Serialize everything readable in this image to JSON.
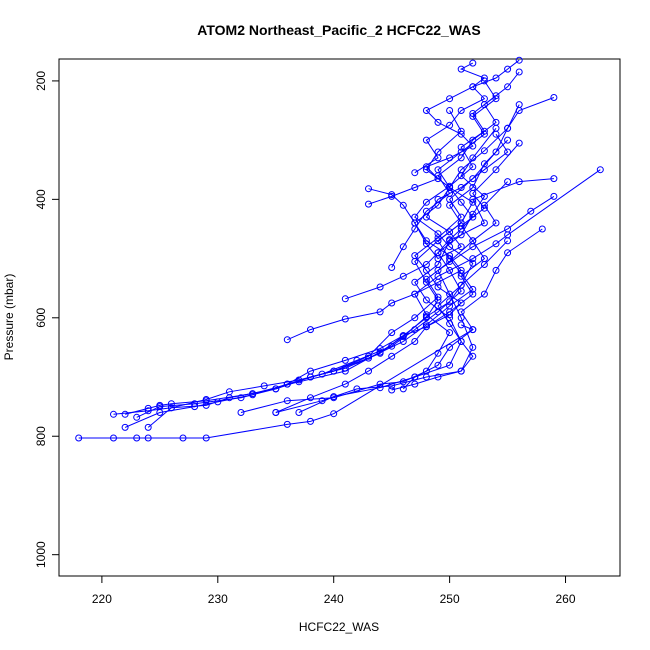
{
  "chart_data": {
    "type": "line",
    "title": "ATOM2 Northeast_Pacific_2 HCFC22_WAS",
    "xlabel": "HCFC22_WAS",
    "ylabel": "Pressure (mbar)",
    "xlim": [
      216.3,
      264.7
    ],
    "ylim": [
      1036,
      163
    ],
    "y_reversed": true,
    "xticks": [
      220,
      230,
      240,
      250,
      260
    ],
    "yticks": [
      200,
      400,
      600,
      800,
      1000
    ],
    "color": "#0000ff",
    "marker": "open-circle",
    "grid": false,
    "series": [
      {
        "x": [
          218,
          221,
          223,
          224,
          227,
          229,
          236,
          238,
          240,
          252,
          251
        ],
        "y": [
          803,
          803,
          803,
          803,
          803,
          803,
          780,
          775,
          762,
          620,
          612
        ]
      },
      {
        "x": [
          222,
          224,
          225,
          226,
          229,
          233,
          237,
          241,
          244,
          246,
          248,
          250,
          251,
          252,
          250,
          249,
          247,
          248,
          250,
          252,
          251,
          253,
          252,
          254
        ],
        "y": [
          763,
          753,
          748,
          745,
          740,
          728,
          708,
          690,
          658,
          632,
          598,
          573,
          545,
          508,
          480,
          458,
          430,
          405,
          378,
          345,
          312,
          285,
          255,
          225
        ]
      },
      {
        "x": [
          221,
          224,
          226,
          229,
          231,
          235,
          238,
          241,
          244,
          246,
          248,
          249,
          248,
          247,
          249,
          251,
          250,
          252,
          253,
          255
        ],
        "y": [
          763,
          757,
          752,
          748,
          735,
          720,
          700,
          685,
          660,
          630,
          600,
          570,
          540,
          505,
          470,
          440,
          410,
          380,
          340,
          300
        ]
      },
      {
        "x": [
          222,
          225,
          228,
          230,
          233,
          236,
          239,
          242,
          245,
          247,
          249,
          251,
          250,
          249,
          251,
          252,
          253,
          251,
          252,
          254
        ],
        "y": [
          785,
          760,
          750,
          742,
          730,
          712,
          695,
          672,
          648,
          620,
          590,
          555,
          520,
          490,
          460,
          425,
          395,
          360,
          330,
          280
        ]
      },
      {
        "x": [
          224,
          226,
          229,
          231,
          234,
          237,
          240,
          243,
          246,
          248,
          250,
          252,
          251,
          250,
          249,
          251,
          252,
          250,
          251,
          253,
          255,
          256
        ],
        "y": [
          785,
          752,
          738,
          725,
          715,
          705,
          690,
          668,
          640,
          612,
          580,
          552,
          525,
          500,
          470,
          440,
          405,
          380,
          350,
          318,
          280,
          240
        ]
      },
      {
        "x": [
          223,
          225,
          228,
          232,
          235,
          238,
          240,
          243,
          245,
          247,
          249,
          248,
          250,
          252,
          251,
          253,
          252,
          254,
          256
        ],
        "y": [
          768,
          750,
          745,
          735,
          720,
          700,
          690,
          665,
          625,
          600,
          565,
          535,
          505,
          470,
          445,
          415,
          390,
          350,
          305
        ]
      },
      {
        "x": [
          235,
          238,
          241,
          243,
          245,
          247,
          248,
          250,
          252,
          251,
          253,
          252,
          254,
          253,
          255
        ],
        "y": [
          760,
          735,
          712,
          690,
          665,
          640,
          615,
          590,
          560,
          530,
          500,
          470,
          440,
          410,
          370
        ]
      },
      {
        "x": [
          232,
          236,
          240,
          244,
          246,
          248,
          249,
          250,
          248,
          247,
          249,
          252,
          254,
          255,
          263
        ],
        "y": [
          760,
          740,
          735,
          712,
          708,
          690,
          660,
          625,
          595,
          560,
          530,
          500,
          475,
          460,
          350
        ]
      },
      {
        "x": [
          235,
          239,
          242,
          245,
          248,
          251,
          252,
          251,
          250,
          249,
          252,
          255,
          257,
          259
        ],
        "y": [
          760,
          740,
          720,
          715,
          700,
          690,
          650,
          600,
          560,
          520,
          480,
          450,
          420,
          395
        ]
      },
      {
        "x": [
          237,
          240,
          244,
          247,
          250,
          251,
          250,
          248,
          247,
          249,
          250,
          253,
          252,
          256,
          259
        ],
        "y": [
          760,
          733,
          718,
          700,
          680,
          640,
          600,
          570,
          540,
          510,
          470,
          440,
          400,
          370,
          365
        ]
      },
      {
        "x": [
          236,
          238,
          241,
          244,
          246,
          248,
          250,
          251,
          249,
          248,
          247,
          249,
          251,
          250,
          252,
          254,
          255,
          256,
          259
        ],
        "y": [
          712,
          690,
          672,
          652,
          630,
          615,
          595,
          575,
          548,
          520,
          495,
          465,
          430,
          400,
          365,
          320,
          280,
          250,
          228
        ]
      },
      {
        "x": [
          236,
          238,
          241,
          244,
          245,
          247,
          249,
          251,
          250,
          248,
          247,
          249,
          250,
          248,
          249,
          251,
          250
        ],
        "y": [
          637,
          620,
          602,
          590,
          575,
          560,
          540,
          520,
          495,
          470,
          440,
          410,
          380,
          350,
          320,
          285,
          250
        ]
      },
      {
        "x": [
          241,
          244,
          246,
          248,
          249,
          250,
          251,
          252,
          251,
          250,
          249,
          251,
          253,
          252,
          254,
          253
        ],
        "y": [
          568,
          548,
          530,
          510,
          490,
          468,
          450,
          430,
          405,
          380,
          350,
          320,
          290,
          260,
          230,
          200
        ]
      },
      {
        "x": [
          243,
          245,
          247,
          249,
          248,
          250,
          252,
          251,
          249,
          248,
          250,
          252,
          253,
          251,
          252
        ],
        "y": [
          408,
          395,
          380,
          365,
          345,
          330,
          310,
          290,
          270,
          250,
          230,
          210,
          195,
          180,
          170
        ]
      },
      {
        "x": [
          243,
          245,
          246,
          247,
          248,
          249,
          251,
          250,
          248,
          249,
          251,
          253,
          255,
          254
        ],
        "y": [
          382,
          392,
          410,
          440,
          475,
          500,
          480,
          455,
          430,
          400,
          380,
          350,
          320,
          290
        ]
      },
      {
        "x": [
          245,
          246,
          247,
          248,
          250,
          249,
          251,
          252,
          254,
          253,
          255,
          256
        ],
        "y": [
          515,
          480,
          450,
          420,
          390,
          360,
          330,
          300,
          270,
          240,
          210,
          185
        ]
      },
      {
        "x": [
          247,
          249,
          248,
          250,
          251,
          253,
          252,
          254,
          255,
          256
        ],
        "y": [
          355,
          330,
          300,
          275,
          250,
          230,
          210,
          195,
          180,
          165
        ]
      },
      {
        "x": [
          246,
          247,
          249,
          250,
          252,
          251,
          253,
          254,
          255,
          258
        ],
        "y": [
          720,
          700,
          680,
          650,
          620,
          590,
          560,
          520,
          490,
          450
        ]
      },
      {
        "x": [
          245,
          247,
          249,
          251,
          252,
          251,
          250,
          249,
          251,
          253,
          255
        ],
        "y": [
          722,
          712,
          700,
          690,
          665,
          640,
          610,
          580,
          545,
          510,
          470
        ]
      }
    ]
  }
}
